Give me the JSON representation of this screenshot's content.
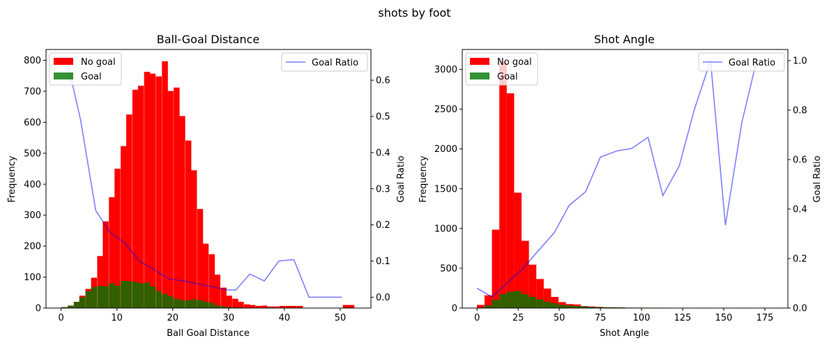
{
  "suptitle": "shots by foot",
  "colors": {
    "no_goal": "#ff0000",
    "goal": "#007700",
    "ratio": "#0000ff"
  },
  "chart_data": [
    {
      "type": "bar",
      "title": "Ball-Goal Distance",
      "xlabel": "Ball Goal Distance",
      "ylabel": "Frequency",
      "ylabel_right": "Goal Ratio",
      "xlim": [
        -2.7,
        55.5
      ],
      "ylim": [
        0,
        835
      ],
      "y2lim": [
        -0.03,
        0.685
      ],
      "xticks": [
        0,
        10,
        20,
        30,
        40,
        50
      ],
      "yticks": [
        0,
        100,
        200,
        300,
        400,
        500,
        600,
        700,
        800
      ],
      "y2ticks": [
        0.0,
        0.1,
        0.2,
        0.3,
        0.4,
        0.5,
        0.6
      ],
      "y2tick_labels": [
        "0.0",
        "0.1",
        "0.2",
        "0.3",
        "0.4",
        "0.5",
        "0.6"
      ],
      "bin_width": 1.06,
      "bins_no_goal": [
        [
          0.6,
          3
        ],
        [
          1.7,
          8
        ],
        [
          2.8,
          20
        ],
        [
          3.8,
          40
        ],
        [
          4.9,
          62
        ],
        [
          5.9,
          98
        ],
        [
          7.0,
          168
        ],
        [
          8.0,
          280
        ],
        [
          9.1,
          358
        ],
        [
          10.1,
          450
        ],
        [
          11.2,
          523
        ],
        [
          12.2,
          625
        ],
        [
          13.3,
          705
        ],
        [
          14.3,
          718
        ],
        [
          15.4,
          763
        ],
        [
          16.4,
          757
        ],
        [
          17.5,
          748
        ],
        [
          18.6,
          797
        ],
        [
          19.6,
          701
        ],
        [
          20.7,
          712
        ],
        [
          21.7,
          620
        ],
        [
          22.8,
          541
        ],
        [
          23.8,
          445
        ],
        [
          24.9,
          320
        ],
        [
          25.9,
          208
        ],
        [
          27.0,
          174
        ],
        [
          28.0,
          108
        ],
        [
          29.1,
          66
        ],
        [
          30.1,
          40
        ],
        [
          31.2,
          30
        ],
        [
          32.2,
          20
        ],
        [
          33.3,
          12
        ],
        [
          34.3,
          10
        ],
        [
          35.4,
          7
        ],
        [
          36.4,
          8
        ],
        [
          37.5,
          5
        ],
        [
          38.5,
          5
        ],
        [
          39.6,
          7
        ],
        [
          40.7,
          7
        ],
        [
          41.7,
          7
        ],
        [
          42.8,
          7
        ],
        [
          51.0,
          10
        ],
        [
          52.0,
          10
        ]
      ],
      "bins_goal": [
        [
          0.6,
          3
        ],
        [
          1.7,
          8
        ],
        [
          2.8,
          20
        ],
        [
          3.8,
          35
        ],
        [
          4.9,
          55
        ],
        [
          5.9,
          68
        ],
        [
          7.0,
          72
        ],
        [
          8.0,
          70
        ],
        [
          9.1,
          80
        ],
        [
          10.1,
          72
        ],
        [
          11.2,
          88
        ],
        [
          12.2,
          87
        ],
        [
          13.3,
          85
        ],
        [
          14.3,
          80
        ],
        [
          15.4,
          83
        ],
        [
          16.4,
          70
        ],
        [
          17.5,
          55
        ],
        [
          18.6,
          45
        ],
        [
          19.6,
          38
        ],
        [
          20.7,
          30
        ],
        [
          21.7,
          25
        ],
        [
          22.8,
          25
        ],
        [
          23.8,
          28
        ],
        [
          24.9,
          26
        ],
        [
          25.9,
          20
        ],
        [
          27.0,
          17
        ],
        [
          28.0,
          8
        ],
        [
          29.1,
          5
        ],
        [
          30.1,
          3
        ],
        [
          31.2,
          2
        ],
        [
          32.2,
          2
        ]
      ],
      "goal_ratio": {
        "x": [
          1.0,
          3.5,
          6.2,
          8.7,
          11.4,
          14.0,
          16.8,
          19.4,
          22.0,
          24.7,
          27.3,
          30.0,
          31.3,
          33.8,
          36.4,
          39.0,
          41.7,
          44.4,
          47.0,
          50.3
        ],
        "y": [
          0.66,
          0.49,
          0.24,
          0.18,
          0.15,
          0.1,
          0.075,
          0.05,
          0.045,
          0.036,
          0.028,
          0.02,
          0.02,
          0.064,
          0.045,
          0.1,
          0.104,
          0.0,
          0.0,
          0.0
        ]
      },
      "legend_left": [
        "No goal",
        "Goal"
      ],
      "legend_right": [
        "Goal Ratio"
      ]
    },
    {
      "type": "bar",
      "title": "Shot Angle",
      "xlabel": "Shot Angle",
      "ylabel": "Frequency",
      "ylabel_right": "Goal Ratio",
      "xlim": [
        -9,
        189
      ],
      "ylim": [
        0,
        3250
      ],
      "y2lim": [
        0.0,
        1.045
      ],
      "xticks": [
        0,
        25,
        50,
        75,
        100,
        125,
        150,
        175
      ],
      "yticks": [
        0,
        500,
        1000,
        1500,
        2000,
        2500,
        3000
      ],
      "y2ticks": [
        0.0,
        0.2,
        0.4,
        0.6,
        0.8,
        1.0
      ],
      "y2tick_labels": [
        "0.0",
        "0.2",
        "0.4",
        "0.6",
        "0.8",
        "1.0"
      ],
      "bin_width": 4.5,
      "bins_no_goal": [
        [
          2.2,
          40
        ],
        [
          6.8,
          160
        ],
        [
          11.3,
          985
        ],
        [
          15.8,
          3100
        ],
        [
          20.3,
          2700
        ],
        [
          24.8,
          1450
        ],
        [
          29.3,
          845
        ],
        [
          33.8,
          545
        ],
        [
          38.3,
          365
        ],
        [
          42.8,
          245
        ],
        [
          47.3,
          140
        ],
        [
          51.8,
          75
        ],
        [
          56.3,
          50
        ],
        [
          60.8,
          45
        ],
        [
          65.3,
          25
        ],
        [
          69.8,
          20
        ],
        [
          74.3,
          15
        ],
        [
          78.8,
          10
        ],
        [
          83.3,
          10
        ],
        [
          87.8,
          8
        ],
        [
          92.3,
          5
        ],
        [
          96.8,
          5
        ],
        [
          101.3,
          5
        ],
        [
          105.8,
          5
        ],
        [
          110.3,
          5
        ],
        [
          114.8,
          5
        ],
        [
          119.3,
          3
        ],
        [
          123.8,
          3
        ],
        [
          128.3,
          3
        ],
        [
          132.8,
          3
        ],
        [
          137.3,
          3
        ]
      ],
      "bins_goal": [
        [
          2.2,
          5
        ],
        [
          6.8,
          35
        ],
        [
          11.3,
          105
        ],
        [
          15.8,
          175
        ],
        [
          20.3,
          205
        ],
        [
          24.8,
          215
        ],
        [
          29.3,
          175
        ],
        [
          33.8,
          140
        ],
        [
          38.3,
          110
        ],
        [
          42.8,
          80
        ],
        [
          47.3,
          60
        ],
        [
          51.8,
          40
        ],
        [
          56.3,
          32
        ],
        [
          60.8,
          25
        ],
        [
          65.3,
          20
        ],
        [
          69.8,
          15
        ],
        [
          74.3,
          12
        ],
        [
          78.8,
          10
        ],
        [
          83.3,
          8
        ],
        [
          87.8,
          7
        ],
        [
          92.3,
          5
        ],
        [
          96.8,
          5
        ],
        [
          101.3,
          4
        ],
        [
          105.8,
          4
        ],
        [
          110.3,
          3
        ],
        [
          114.8,
          3
        ],
        [
          119.3,
          3
        ],
        [
          123.8,
          3
        ],
        [
          128.3,
          3
        ],
        [
          132.8,
          3
        ],
        [
          137.3,
          3
        ],
        [
          160.3,
          3
        ],
        [
          178.3,
          3
        ]
      ],
      "goal_ratio": {
        "x": [
          0,
          9,
          18,
          28,
          37,
          47,
          56,
          66,
          75,
          85,
          94,
          104,
          113,
          123,
          132,
          142,
          151,
          161,
          170
        ],
        "y": [
          0.08,
          0.045,
          0.1,
          0.16,
          0.23,
          0.305,
          0.415,
          0.47,
          0.61,
          0.635,
          0.645,
          0.69,
          0.455,
          0.575,
          0.8,
          1.0,
          0.335,
          0.75,
          1.0
        ]
      },
      "legend_left": [
        "No goal",
        "Goal"
      ],
      "legend_right": [
        "Goal Ratio"
      ]
    }
  ]
}
